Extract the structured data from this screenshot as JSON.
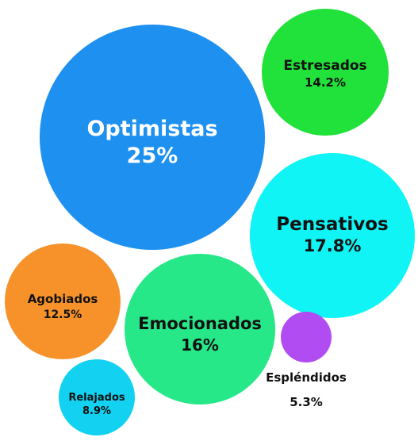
{
  "chart_data": {
    "type": "bubble",
    "title": "",
    "bubbles": [
      {
        "name": "Optimistas",
        "value": 25.0,
        "label": "25%",
        "color": "#1E90F0",
        "text_color": "#ffffff"
      },
      {
        "name": "Estresados",
        "value": 14.2,
        "label": "14.2%",
        "color": "#21E23A",
        "text_color": "#111111"
      },
      {
        "name": "Pensativos",
        "value": 17.8,
        "label": "17.8%",
        "color": "#10F4F6",
        "text_color": "#111111"
      },
      {
        "name": "Agobiados",
        "value": 12.5,
        "label": "12.5%",
        "color": "#F7922B",
        "text_color": "#111111"
      },
      {
        "name": "Emocionados",
        "value": 16.0,
        "label": "16%",
        "color": "#27E889",
        "text_color": "#111111"
      },
      {
        "name": "Espléndidos",
        "value": 5.3,
        "label": "5.3%",
        "color": "#B14CF2",
        "text_color": "#111111"
      },
      {
        "name": "Relajados",
        "value": 8.9,
        "label": "8.9%",
        "color": "#12D1F1",
        "text_color": "#111111"
      }
    ]
  }
}
